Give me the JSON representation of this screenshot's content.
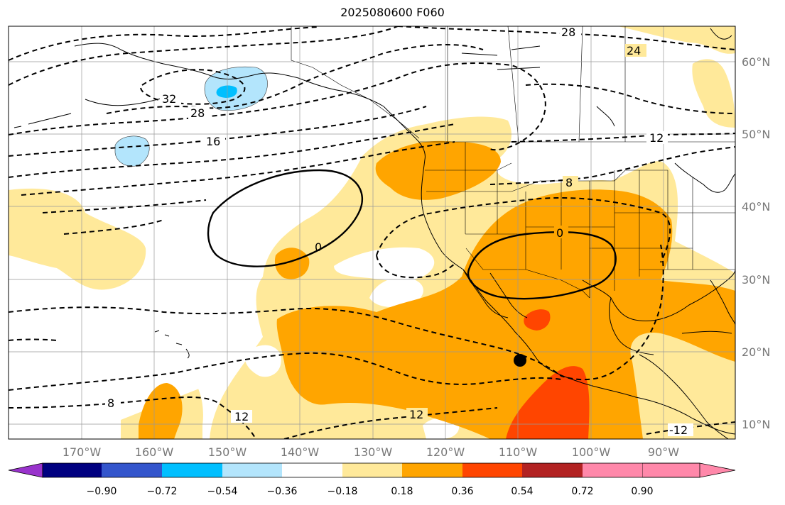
{
  "title": "2025080600 F060",
  "map": {
    "lon_labels": [
      "170°W",
      "160°W",
      "150°W",
      "140°W",
      "130°W",
      "120°W",
      "110°W",
      "100°W",
      "90°W"
    ],
    "lat_labels": [
      "60°N",
      "50°N",
      "40°N",
      "30°N",
      "20°N",
      "10°N"
    ],
    "contour_labels": {
      "c28_top": "28",
      "c24": "24",
      "c32": "32",
      "c28": "28",
      "c16": "16",
      "c12_ne": "12",
      "c8_ne": "8",
      "c0_pacific": "0",
      "c0_mexico": "0",
      "c8_sw": "8",
      "c12_sw": "12",
      "c12_s": "12",
      "c12_se": "-12"
    },
    "marker": "black-dot"
  },
  "colorbar": {
    "colors": [
      "#9933cc",
      "#000080",
      "#3355cc",
      "#00bfff",
      "#b3e5fc",
      "#ffffff",
      "#ffe99a",
      "#ffa500",
      "#ff4500",
      "#b22222",
      "#ff88aa"
    ],
    "tick_labels": [
      "−0.90",
      "−0.72",
      "−0.54",
      "−0.36",
      "−0.18",
      "0.18",
      "0.36",
      "0.54",
      "0.72",
      "0.90"
    ]
  }
}
